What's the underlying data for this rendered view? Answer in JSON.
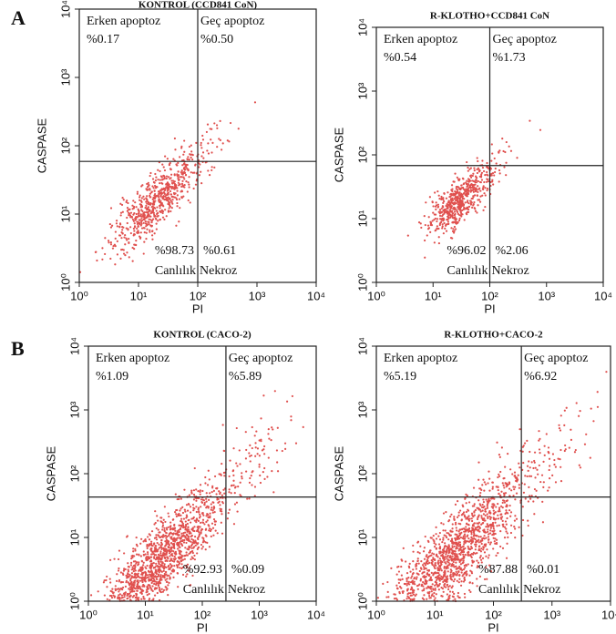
{
  "panels": [
    "A",
    "B"
  ],
  "chart_data": [
    {
      "type": "scatter",
      "title": "KONTROL (CCD841 CoN)",
      "xlabel": "PI",
      "ylabel": "CASPASE",
      "xscale": "log",
      "yscale": "log",
      "xlim": [
        1,
        10000
      ],
      "ylim": [
        1,
        10000
      ],
      "xticks": [
        {
          "value": 1,
          "label": "10⁰"
        },
        {
          "value": 10,
          "label": "10¹"
        },
        {
          "value": 100,
          "label": "10²"
        },
        {
          "value": 1000,
          "label": "10³"
        },
        {
          "value": 10000,
          "label": "10⁴"
        }
      ],
      "yticks": [
        {
          "value": 1,
          "label": "10⁰"
        },
        {
          "value": 10,
          "label": "10¹"
        },
        {
          "value": 100,
          "label": "10²"
        },
        {
          "value": 1000,
          "label": "10³"
        },
        {
          "value": 10000,
          "label": "10⁴"
        }
      ],
      "color": "#e0504e",
      "gate": {
        "x": 100,
        "y": 59
      },
      "quadrants": {
        "upper_left": {
          "name": "Erken apoptoz",
          "label": "%0.17"
        },
        "upper_right": {
          "name": "Geç apoptoz",
          "label": "%0.50"
        },
        "lower_left": {
          "name": "Canlılık",
          "label": "%98.73"
        },
        "lower_right": {
          "name": "Nekroz",
          "label": "%0.61"
        }
      }
    },
    {
      "type": "scatter",
      "title": "R-KLOTHO+CCD841 CoN",
      "xlabel": "PI",
      "ylabel": "CASPASE",
      "xscale": "log",
      "yscale": "log",
      "xlim": [
        1,
        10000
      ],
      "ylim": [
        1,
        10000
      ],
      "xticks": [
        {
          "value": 1,
          "label": "10⁰"
        },
        {
          "value": 10,
          "label": "10¹"
        },
        {
          "value": 100,
          "label": "10²"
        },
        {
          "value": 1000,
          "label": "10³"
        },
        {
          "value": 10000,
          "label": "10⁴"
        }
      ],
      "yticks": [
        {
          "value": 1,
          "label": "10⁰"
        },
        {
          "value": 10,
          "label": "10¹"
        },
        {
          "value": 100,
          "label": "10²"
        },
        {
          "value": 1000,
          "label": "10³"
        },
        {
          "value": 10000,
          "label": "10⁴"
        }
      ],
      "color": "#e0504e",
      "gate": {
        "x": 100,
        "y": 68
      },
      "quadrants": {
        "upper_left": {
          "name": "Erken apoptoz",
          "label": "%0.54"
        },
        "upper_right": {
          "name": "Geç apoptoz",
          "label": "%1.73"
        },
        "lower_left": {
          "name": "Canlılık",
          "label": "%96.02"
        },
        "lower_right": {
          "name": "Nekroz",
          "label": "%2.06"
        }
      }
    },
    {
      "type": "scatter",
      "title": "KONTROL (CACO-2)",
      "xlabel": "PI",
      "ylabel": "CASPASE",
      "xscale": "log",
      "yscale": "log",
      "xlim": [
        1,
        10000
      ],
      "ylim": [
        1,
        10000
      ],
      "xticks": [
        {
          "value": 1,
          "label": "10⁰"
        },
        {
          "value": 10,
          "label": "10¹"
        },
        {
          "value": 100,
          "label": "10²"
        },
        {
          "value": 1000,
          "label": "10³"
        },
        {
          "value": 10000,
          "label": "10⁴"
        }
      ],
      "yticks": [
        {
          "value": 1,
          "label": "10⁰"
        },
        {
          "value": 10,
          "label": "10¹"
        },
        {
          "value": 100,
          "label": "10²"
        },
        {
          "value": 1000,
          "label": "10³"
        },
        {
          "value": 10000,
          "label": "10⁴"
        }
      ],
      "color": "#e0504e",
      "gate": {
        "x": 260,
        "y": 43
      },
      "quadrants": {
        "upper_left": {
          "name": "Erken apoptoz",
          "label": "%1.09"
        },
        "upper_right": {
          "name": "Geç apoptoz",
          "label": "%5.89"
        },
        "lower_left": {
          "name": "Canlılık",
          "label": "%92.93"
        },
        "lower_right": {
          "name": "Nekroz",
          "label": "%0.09"
        }
      }
    },
    {
      "type": "scatter",
      "title": "R-KLOTHO+CACO-2",
      "xlabel": "PI",
      "ylabel": "CASPASE",
      "xscale": "log",
      "yscale": "log",
      "xlim": [
        1,
        10000
      ],
      "ylim": [
        1,
        10000
      ],
      "xticks": [
        {
          "value": 1,
          "label": "10⁰"
        },
        {
          "value": 10,
          "label": "10¹"
        },
        {
          "value": 100,
          "label": "10²"
        },
        {
          "value": 1000,
          "label": "10³"
        },
        {
          "value": 10000,
          "label": "10⁴"
        }
      ],
      "yticks": [
        {
          "value": 1,
          "label": "10⁰"
        },
        {
          "value": 10,
          "label": "10¹"
        },
        {
          "value": 100,
          "label": "10²"
        },
        {
          "value": 1000,
          "label": "10³"
        },
        {
          "value": 10000,
          "label": "10⁴"
        }
      ],
      "color": "#e0504e",
      "gate": {
        "x": 300,
        "y": 43
      },
      "quadrants": {
        "upper_left": {
          "name": "Erken apoptoz",
          "label": "%5.19"
        },
        "upper_right": {
          "name": "Geç apoptoz",
          "label": "%6.92"
        },
        "lower_left": {
          "name": "Canlılık",
          "label": "%87.88"
        },
        "lower_right": {
          "name": "Nekroz",
          "label": "%0.01"
        }
      }
    }
  ]
}
